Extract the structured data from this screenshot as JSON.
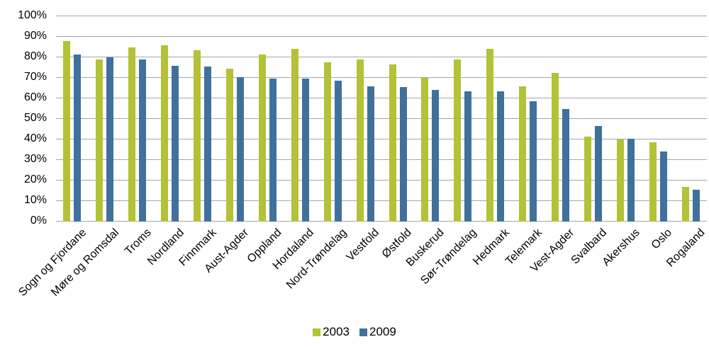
{
  "chart_data": {
    "type": "bar",
    "title": "",
    "xlabel": "",
    "ylabel": "",
    "ylim": [
      0,
      100
    ],
    "ytick_step": 10,
    "ytick_labels": [
      "0%",
      "10%",
      "20%",
      "30%",
      "40%",
      "50%",
      "60%",
      "70%",
      "80%",
      "90%",
      "100%"
    ],
    "grid": "horizontal",
    "legend_position": "bottom",
    "categories": [
      "Sogn og Fjordane",
      "Møre og Romsdal",
      "Troms",
      "Nordland",
      "Finnmark",
      "Aust-Agder",
      "Oppland",
      "Hordaland",
      "Nord-Trøndelag",
      "Vestfold",
      "Østfold",
      "Buskerud",
      "Sør-Trøndelag",
      "Hedmark",
      "Telemark",
      "Vest-Agder",
      "Svalbard",
      "Akershus",
      "Oslo",
      "Rogaland"
    ],
    "series": [
      {
        "name": "2003",
        "color": "#b3c236",
        "values": [
          88,
          79,
          85,
          86,
          83.5,
          74.5,
          81.5,
          84,
          77.5,
          79,
          76.5,
          70,
          79,
          84,
          66,
          72.5,
          41.5,
          40,
          38.5,
          17
        ]
      },
      {
        "name": "2009",
        "color": "#40719c",
        "values": [
          81.5,
          80,
          79,
          76,
          75.5,
          70.5,
          69.5,
          69.5,
          68.5,
          66,
          65.5,
          64,
          63.5,
          63.5,
          58.5,
          55,
          46.5,
          40.5,
          34,
          15.5
        ]
      }
    ]
  },
  "colors": {
    "gridline": "#a6a6a6",
    "text": "#000000",
    "background": "#ffffff"
  }
}
